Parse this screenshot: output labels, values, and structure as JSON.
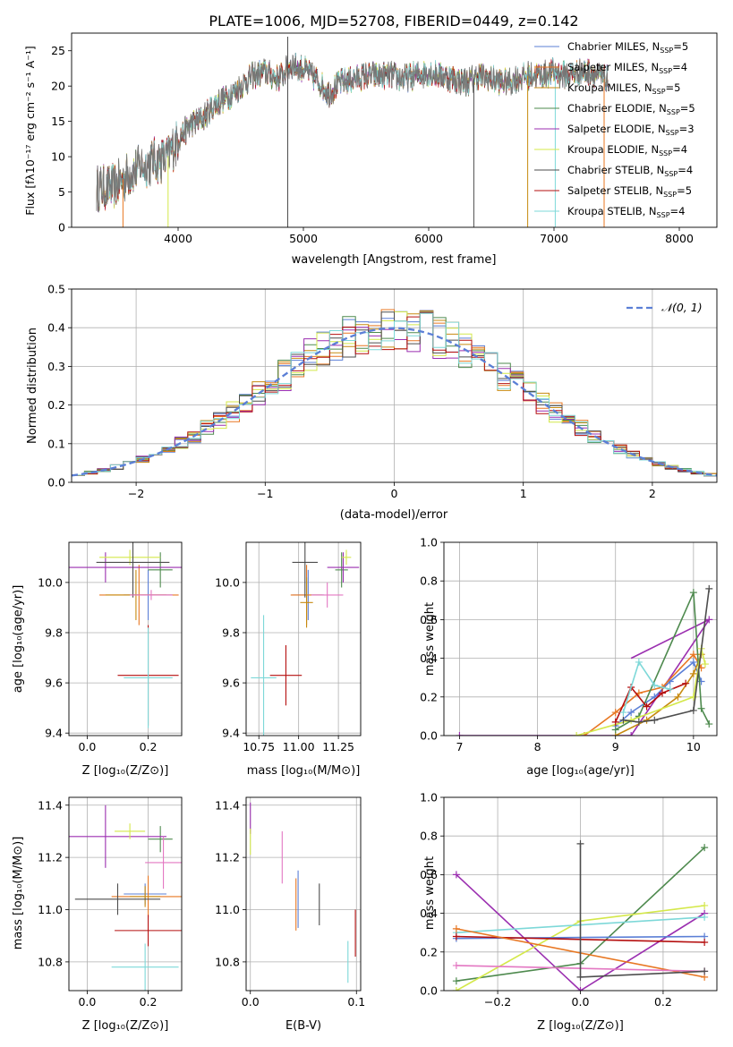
{
  "title": "PLATE=1006, MJD=52708, FIBERID=0449, z=0.142",
  "colors": {
    "chabrier_miles": "#5b7fd6",
    "salpeter_miles": "#e87722",
    "kroupa_miles": "#c78a10",
    "chabrier_elodie": "#4e8a4e",
    "salpeter_elodie": "#9b2fb0",
    "kroupa_elodie": "#d4e84a",
    "chabrier_stelib": "#4d4d4d",
    "salpeter_stelib": "#b50f0f",
    "kroupa_stelib": "#7dd8d8",
    "pink": "#e377c2",
    "normal_curve": "#5b7fd6",
    "grid": "#b0b0b0"
  },
  "chart_data": [
    {
      "id": "spectrum",
      "type": "line",
      "xlabel": "wavelength [Angstrom, rest frame]",
      "ylabel": "Flux [fλ10⁻¹⁷ erg cm⁻² s⁻¹ A⁻¹]",
      "xlim": [
        3150,
        8300
      ],
      "ylim": [
        0,
        27.5
      ],
      "xticks": [
        4000,
        5000,
        6000,
        7000,
        8000
      ],
      "yticks": [
        0,
        5,
        10,
        15,
        20,
        25
      ],
      "grid": false,
      "legend_position": "top-right",
      "legend": [
        {
          "name": "Chabrier MILES, N",
          "sub": "SSP",
          "suffix": "=5",
          "color_key": "chabrier_miles"
        },
        {
          "name": "Salpeter MILES, N",
          "sub": "SSP",
          "suffix": "=4",
          "color_key": "salpeter_miles"
        },
        {
          "name": "Kroupa MILES, N",
          "sub": "SSP",
          "suffix": "=5",
          "color_key": "kroupa_miles"
        },
        {
          "name": "Chabrier ELODIE, N",
          "sub": "SSP",
          "suffix": "=5",
          "color_key": "chabrier_elodie"
        },
        {
          "name": "Salpeter ELODIE, N",
          "sub": "SSP",
          "suffix": "=3",
          "color_key": "salpeter_elodie"
        },
        {
          "name": "Kroupa ELODIE, N",
          "sub": "SSP",
          "suffix": "=4",
          "color_key": "kroupa_elodie"
        },
        {
          "name": "Chabrier STELIB, N",
          "sub": "SSP",
          "suffix": "=4",
          "color_key": "chabrier_stelib"
        },
        {
          "name": "Salpeter STELIB, N",
          "sub": "SSP",
          "suffix": "=5",
          "color_key": "salpeter_stelib"
        },
        {
          "name": "Kroupa STELIB, N",
          "sub": "SSP",
          "suffix": "=4",
          "color_key": "kroupa_stelib"
        }
      ],
      "continuum": {
        "wavelength": [
          3350,
          3500,
          3600,
          3700,
          3800,
          3900,
          4000,
          4100,
          4200,
          4300,
          4400,
          4500,
          4600,
          4700,
          4800,
          4900,
          5000,
          5100,
          5200,
          5300,
          5400,
          5500,
          5600,
          5700,
          5800,
          5900,
          6000,
          6100,
          6200,
          6300,
          6400,
          6500,
          6600,
          6700,
          6800,
          6900,
          7000,
          7100,
          7200,
          7300,
          7400
        ],
        "flux": [
          5.5,
          5.8,
          7.5,
          8.5,
          9.5,
          9.5,
          12.5,
          14.5,
          15.5,
          17.5,
          18.5,
          20.0,
          21.5,
          22.0,
          21.0,
          23.0,
          22.5,
          21.0,
          19.0,
          20.5,
          21.0,
          21.5,
          21.5,
          21.5,
          21.0,
          21.5,
          22.0,
          21.5,
          21.0,
          20.5,
          21.5,
          21.0,
          20.5,
          21.0,
          21.5,
          21.5,
          22.0,
          21.5,
          22.0,
          22.0,
          21.0
        ]
      }
    },
    {
      "id": "residuals",
      "type": "step",
      "xlabel": "(data-model)/error",
      "ylabel": "Normed distribution",
      "xlim": [
        -2.5,
        2.5
      ],
      "ylim": [
        0,
        0.5
      ],
      "xticks": [
        -2,
        -1,
        0,
        1,
        2
      ],
      "yticks": [
        0.0,
        0.1,
        0.2,
        0.3,
        0.4,
        0.5
      ],
      "grid": true,
      "legend_position": "top-right",
      "legend": [
        {
          "name": "𝒩(0, 1)",
          "style": "dashed",
          "color_key": "normal_curve"
        }
      ],
      "bin_width": 0.1,
      "normal": {
        "mean": 0,
        "sigma": 1
      }
    },
    {
      "id": "age-vs-z",
      "type": "errorbar",
      "xlabel": "Z [log₁₀(Z/Z⊙)]",
      "ylabel": "age  [log₁₀(age/yr)]",
      "xlim": [
        -0.06,
        0.31
      ],
      "ylim": [
        9.39,
        10.16
      ],
      "xticks": [
        0.0,
        0.2
      ],
      "yticks": [
        9.4,
        9.6,
        9.8,
        10.0
      ],
      "grid": true,
      "points": [
        {
          "color_key": "chabrier_miles",
          "x": 0.2,
          "xerr": 0.08,
          "y": 9.95,
          "yerr": 0.1
        },
        {
          "color_key": "salpeter_miles",
          "x": 0.17,
          "xerr": 0.13,
          "y": 9.95,
          "yerr": 0.12
        },
        {
          "color_key": "kroupa_miles",
          "x": 0.16,
          "xerr": 0.1,
          "y": 9.95,
          "yerr": 0.1
        },
        {
          "color_key": "chabrier_elodie",
          "x": 0.24,
          "xerr": 0.04,
          "y": 10.05,
          "yerr": 0.07
        },
        {
          "color_key": "salpeter_elodie",
          "x": 0.06,
          "xerr": 0.34,
          "y": 10.06,
          "yerr": 0.06
        },
        {
          "color_key": "kroupa_elodie",
          "x": 0.14,
          "xerr": 0.1,
          "y": 10.1,
          "yerr": 0.03
        },
        {
          "color_key": "chabrier_stelib",
          "x": 0.15,
          "xerr": 0.12,
          "y": 10.08,
          "yerr": 0.14
        },
        {
          "color_key": "salpeter_stelib",
          "x": 0.2,
          "xerr": 0.1,
          "y": 9.63,
          "yerr": 0.2
        },
        {
          "color_key": "kroupa_stelib",
          "x": 0.2,
          "xerr": 0.08,
          "y": 9.62,
          "yerr": 0.2
        },
        {
          "color_key": "pink",
          "x": 0.21,
          "xerr": 0.07,
          "y": 9.95,
          "yerr": 0.02
        }
      ]
    },
    {
      "id": "age-vs-mass",
      "type": "errorbar",
      "xlabel": "mass [log₁₀(M/M⊙)]",
      "ylabel": "",
      "xlim": [
        10.67,
        11.39
      ],
      "ylim": [
        9.39,
        10.16
      ],
      "xticks": [
        10.75,
        11.0,
        11.25
      ],
      "yticks": [
        9.4,
        9.6,
        9.8,
        10.0
      ],
      "grid": true,
      "points": [
        {
          "color_key": "chabrier_miles",
          "x": 11.06,
          "xerr": 0.1,
          "y": 9.95,
          "yerr": 0.1
        },
        {
          "color_key": "salpeter_miles",
          "x": 11.05,
          "xerr": 0.1,
          "y": 9.95,
          "yerr": 0.12
        },
        {
          "color_key": "kroupa_miles",
          "x": 11.05,
          "xerr": 0.04,
          "y": 9.92,
          "yerr": 0.1
        },
        {
          "color_key": "chabrier_elodie",
          "x": 11.27,
          "xerr": 0.04,
          "y": 10.05,
          "yerr": 0.07
        },
        {
          "color_key": "salpeter_elodie",
          "x": 11.28,
          "xerr": 0.1,
          "y": 10.06,
          "yerr": 0.06
        },
        {
          "color_key": "kroupa_elodie",
          "x": 11.3,
          "xerr": 0.03,
          "y": 10.1,
          "yerr": 0.03
        },
        {
          "color_key": "chabrier_stelib",
          "x": 11.04,
          "xerr": 0.08,
          "y": 10.08,
          "yerr": 0.14
        },
        {
          "color_key": "salpeter_stelib",
          "x": 10.92,
          "xerr": 0.1,
          "y": 9.63,
          "yerr": 0.12
        },
        {
          "color_key": "kroupa_stelib",
          "x": 10.78,
          "xerr": 0.08,
          "y": 9.62,
          "yerr": 0.25
        },
        {
          "color_key": "pink",
          "x": 11.18,
          "xerr": 0.1,
          "y": 9.95,
          "yerr": 0.05
        }
      ]
    },
    {
      "id": "weight-vs-age",
      "type": "line",
      "xlabel": "age  [log₁₀(age/yr)]",
      "ylabel": "mass weight",
      "xlim": [
        6.8,
        10.3
      ],
      "ylim": [
        0,
        1
      ],
      "xticks": [
        7,
        8,
        9,
        10
      ],
      "yticks": [
        0.0,
        0.2,
        0.4,
        0.6,
        0.8,
        1.0
      ],
      "grid": true,
      "series": [
        {
          "color_key": "salpeter_elodie",
          "x": [
            7.0,
            9.2,
            10.2
          ],
          "y": [
            0.0,
            0.0,
            0.6
          ],
          "x2": [
            9.2,
            10.2
          ],
          "y2": [
            0.4,
            0.6
          ]
        },
        {
          "color_key": "chabrier_miles",
          "x": [
            9.0,
            9.2,
            9.5,
            9.7,
            10.0,
            10.1
          ],
          "y": [
            0.05,
            0.12,
            0.2,
            0.28,
            0.38,
            0.28
          ]
        },
        {
          "color_key": "salpeter_miles",
          "x": [
            8.6,
            9.0,
            9.3,
            9.6,
            10.0,
            10.1
          ],
          "y": [
            0.0,
            0.12,
            0.22,
            0.25,
            0.42,
            0.35
          ]
        },
        {
          "color_key": "kroupa_miles",
          "x": [
            9.0,
            9.4,
            9.8,
            10.0,
            10.1
          ],
          "y": [
            0.0,
            0.08,
            0.2,
            0.32,
            0.42
          ]
        },
        {
          "color_key": "chabrier_elodie",
          "x": [
            9.0,
            9.3,
            10.0,
            10.1,
            10.2
          ],
          "y": [
            0.03,
            0.1,
            0.74,
            0.14,
            0.06
          ]
        },
        {
          "color_key": "kroupa_elodie",
          "x": [
            8.5,
            9.2,
            10.0,
            10.1,
            10.15
          ],
          "y": [
            0.0,
            0.08,
            0.2,
            0.45,
            0.37
          ]
        },
        {
          "color_key": "chabrier_stelib",
          "x": [
            9.1,
            9.3,
            9.5,
            10.0,
            10.2
          ],
          "y": [
            0.08,
            0.07,
            0.08,
            0.13,
            0.76
          ]
        },
        {
          "color_key": "salpeter_stelib",
          "x": [
            9.0,
            9.2,
            9.4,
            9.6,
            9.9
          ],
          "y": [
            0.07,
            0.25,
            0.15,
            0.22,
            0.27
          ]
        },
        {
          "color_key": "kroupa_stelib",
          "x": [
            9.1,
            9.3,
            9.5,
            9.7
          ],
          "y": [
            0.12,
            0.38,
            0.26,
            0.24
          ]
        }
      ]
    },
    {
      "id": "mass-vs-z",
      "type": "errorbar",
      "xlabel": "Z [log₁₀(Z/Z⊙)]",
      "ylabel": "mass [log₁₀(M/M⊙)]",
      "xlim": [
        -0.06,
        0.31
      ],
      "ylim": [
        10.69,
        11.43
      ],
      "xticks": [
        0.0,
        0.2
      ],
      "yticks": [
        10.8,
        11.0,
        11.2,
        11.4
      ],
      "grid": true,
      "points": [
        {
          "color_key": "chabrier_miles",
          "x": 0.19,
          "xerr": 0.07,
          "y": 11.06,
          "yerr": 0.04
        },
        {
          "color_key": "salpeter_miles",
          "x": 0.2,
          "xerr": 0.12,
          "y": 11.05,
          "yerr": 0.08
        },
        {
          "color_key": "kroupa_miles",
          "x": 0.19,
          "xerr": 0.05,
          "y": 11.05,
          "yerr": 0.04
        },
        {
          "color_key": "chabrier_elodie",
          "x": 0.24,
          "xerr": 0.04,
          "y": 11.27,
          "yerr": 0.05
        },
        {
          "color_key": "salpeter_elodie",
          "x": 0.06,
          "xerr": 0.2,
          "y": 11.28,
          "yerr": 0.12
        },
        {
          "color_key": "kroupa_elodie",
          "x": 0.14,
          "xerr": 0.05,
          "y": 11.3,
          "yerr": 0.03
        },
        {
          "color_key": "chabrier_stelib",
          "x": 0.1,
          "xerr": 0.14,
          "y": 11.04,
          "yerr": 0.06
        },
        {
          "color_key": "salpeter_stelib",
          "x": 0.2,
          "xerr": 0.11,
          "y": 10.92,
          "yerr": 0.06
        },
        {
          "color_key": "kroupa_stelib",
          "x": 0.19,
          "xerr": 0.11,
          "y": 10.78,
          "yerr": 0.09
        },
        {
          "color_key": "pink",
          "x": 0.25,
          "xerr": 0.06,
          "y": 11.18,
          "yerr": 0.1
        }
      ]
    },
    {
      "id": "mass-vs-ebv",
      "type": "errorbar",
      "xlabel": "E(B-V)",
      "ylabel": "",
      "xlim": [
        -0.004,
        0.104
      ],
      "ylim": [
        10.69,
        11.43
      ],
      "xticks": [
        0.0,
        0.1
      ],
      "yticks": [
        10.8,
        11.0,
        11.2,
        11.4
      ],
      "grid": true,
      "points": [
        {
          "color_key": "salpeter_elodie",
          "x": 0.0,
          "xerr": 0,
          "y": 11.35,
          "yerr": 0.06
        },
        {
          "color_key": "kroupa_elodie",
          "x": 0.0,
          "xerr": 0,
          "y": 11.26,
          "yerr": 0.05
        },
        {
          "color_key": "pink",
          "x": 0.03,
          "xerr": 0,
          "y": 11.2,
          "yerr": 0.1
        },
        {
          "color_key": "chabrier_miles",
          "x": 0.045,
          "xerr": 0,
          "y": 11.04,
          "yerr": 0.11
        },
        {
          "color_key": "salpeter_miles",
          "x": 0.043,
          "xerr": 0,
          "y": 11.02,
          "yerr": 0.1
        },
        {
          "color_key": "chabrier_stelib",
          "x": 0.065,
          "xerr": 0,
          "y": 11.02,
          "yerr": 0.08
        },
        {
          "color_key": "kroupa_stelib",
          "x": 0.092,
          "xerr": 0,
          "y": 10.8,
          "yerr": 0.08
        },
        {
          "color_key": "salpeter_stelib",
          "x": 0.099,
          "xerr": 0,
          "y": 10.91,
          "yerr": 0.09
        }
      ]
    },
    {
      "id": "weight-vs-z",
      "type": "line",
      "xlabel": "Z [log₁₀(Z/Z⊙)]",
      "ylabel": "mass weight",
      "xlim": [
        -0.33,
        0.33
      ],
      "ylim": [
        0,
        1
      ],
      "xticks": [
        -0.2,
        0.0,
        0.2
      ],
      "yticks": [
        0.0,
        0.2,
        0.4,
        0.6,
        0.8,
        1.0
      ],
      "grid": true,
      "series": [
        {
          "color_key": "salpeter_elodie",
          "x": [
            -0.3,
            0.0,
            0.3
          ],
          "y": [
            0.6,
            0.0,
            0.4
          ]
        },
        {
          "color_key": "chabrier_elodie",
          "x": [
            -0.3,
            0.0,
            0.3
          ],
          "y": [
            0.05,
            0.14,
            0.74
          ]
        },
        {
          "color_key": "kroupa_elodie",
          "x": [
            -0.3,
            0.0,
            0.3
          ],
          "y": [
            0.0,
            0.36,
            0.44
          ]
        },
        {
          "color_key": "kroupa_stelib",
          "x": [
            -0.3,
            0.3
          ],
          "y": [
            0.3,
            0.38
          ]
        },
        {
          "color_key": "chabrier_miles",
          "x": [
            -0.3,
            0.3
          ],
          "y": [
            0.27,
            0.28
          ]
        },
        {
          "color_key": "salpeter_stelib",
          "x": [
            -0.3,
            0.3
          ],
          "y": [
            0.28,
            0.25
          ]
        },
        {
          "color_key": "salpeter_miles",
          "x": [
            -0.3,
            0.3
          ],
          "y": [
            0.32,
            0.07
          ]
        },
        {
          "color_key": "pink",
          "x": [
            -0.3,
            0.3
          ],
          "y": [
            0.13,
            0.1
          ]
        },
        {
          "color_key": "chabrier_stelib",
          "x": [
            0.0,
            0.0,
            0.3
          ],
          "y": [
            0.76,
            0.07,
            0.1
          ]
        }
      ]
    }
  ]
}
